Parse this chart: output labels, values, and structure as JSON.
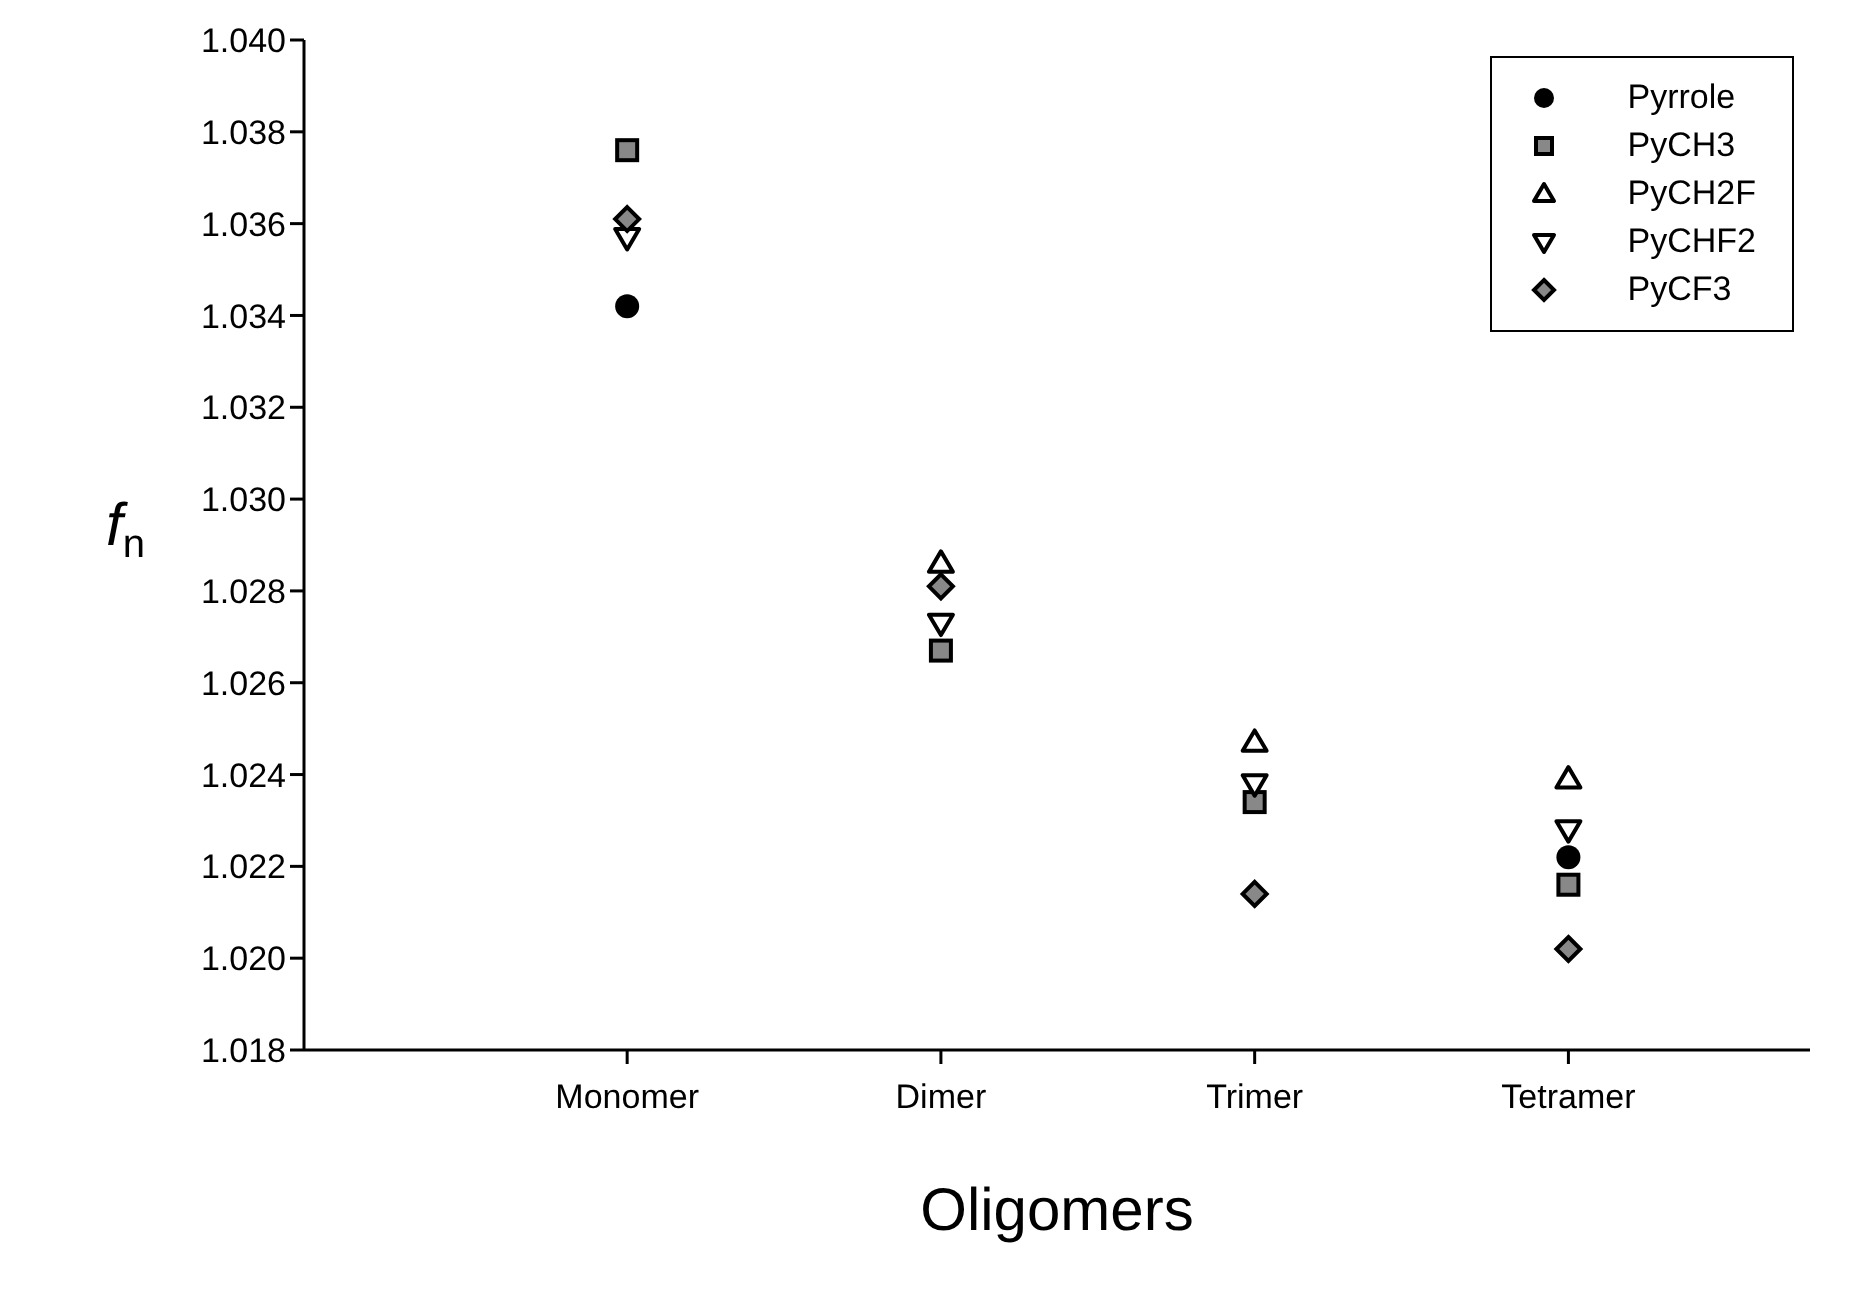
{
  "chart_data": {
    "type": "scatter",
    "xlabel": "Oligomers",
    "ylabel": "f$_{n}$",
    "categories": [
      "Monomer",
      "Dimer",
      "Trimer",
      "Tetramer"
    ],
    "series": [
      {
        "name": "Pyrrole",
        "color": "#000000",
        "marker": "circle",
        "values": [
          1.0342,
          null,
          null,
          1.0222
        ]
      },
      {
        "name": "PyCH3",
        "color": "#000000",
        "marker": "square",
        "values": [
          1.0376,
          1.0267,
          1.0234,
          1.0216
        ]
      },
      {
        "name": "PyCH2F",
        "color": "#000000",
        "marker": "triangle",
        "values": [
          null,
          1.0286,
          1.0247,
          1.0239
        ]
      },
      {
        "name": "PyCHF2",
        "color": "#000000",
        "marker": "triangle-down",
        "values": [
          1.0357,
          1.0273,
          1.0238,
          1.0228
        ]
      },
      {
        "name": "PyCF3",
        "color": "#000000",
        "marker": "diamond",
        "values": [
          1.0361,
          1.0281,
          1.0214,
          1.0202
        ]
      }
    ],
    "ylim": [
      1.018,
      1.04
    ],
    "yticks": [
      {
        "value": 1.018,
        "label": "1.018"
      },
      {
        "value": 1.02,
        "label": "1.020"
      },
      {
        "value": 1.022,
        "label": "1.022"
      },
      {
        "value": 1.024,
        "label": "1.024"
      },
      {
        "value": 1.026,
        "label": "1.026"
      },
      {
        "value": 1.028,
        "label": "1.028"
      },
      {
        "value": 1.03,
        "label": "1.030"
      },
      {
        "value": 1.032,
        "label": "1.032"
      },
      {
        "value": 1.034,
        "label": "1.034"
      },
      {
        "value": 1.036,
        "label": "1.036"
      },
      {
        "value": 1.038,
        "label": "1.038"
      },
      {
        "value": 1.04,
        "label": "1.040"
      }
    ],
    "grid": false,
    "legend": "top right"
  }
}
